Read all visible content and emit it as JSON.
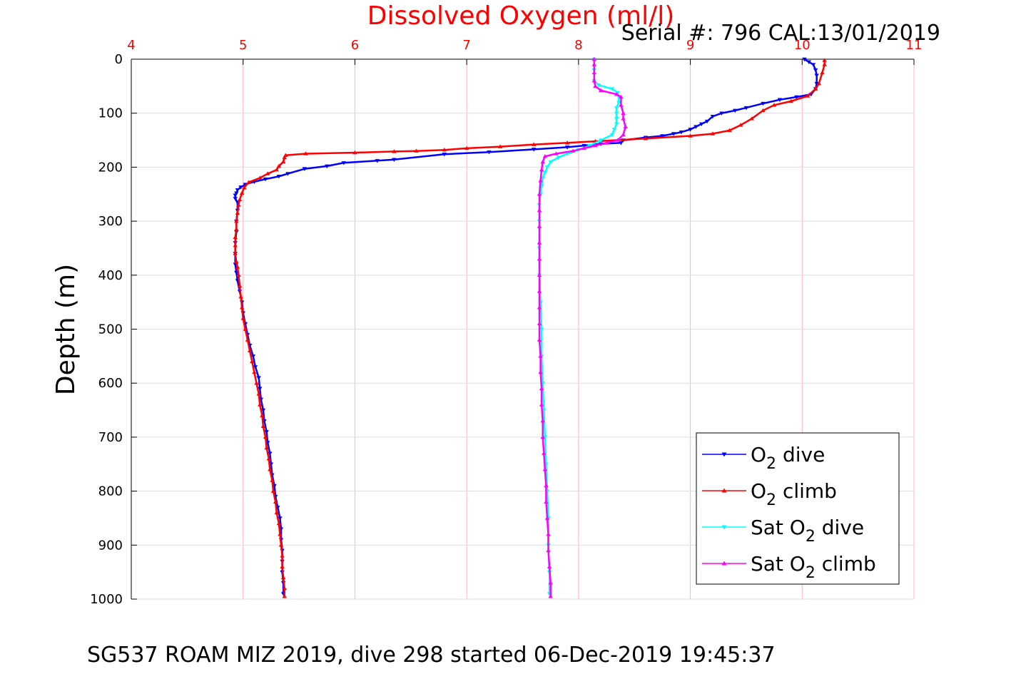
{
  "chart_data": {
    "type": "scatter",
    "title": "Dissolved Oxygen (ml/l)",
    "subtitle": "Serial #: 796  CAL:13/01/2019",
    "xlabel": "Dissolved Oxygen (ml/l)",
    "ylabel": "Depth (m)",
    "xlim": [
      4,
      11
    ],
    "ylim": [
      0,
      1000
    ],
    "y_reversed": true,
    "x_axis_position": "top",
    "x_ticks": [
      "4",
      "5",
      "6",
      "7",
      "8",
      "9",
      "10",
      "11"
    ],
    "y_ticks": [
      "0",
      "100",
      "200",
      "300",
      "400",
      "500",
      "600",
      "700",
      "800",
      "900",
      "1000"
    ],
    "grid": true,
    "legend_position": "bottom-right",
    "footer": "SG537 ROAM MIZ 2019, dive 298 started 06-Dec-2019 19:45:37",
    "colors": {
      "title": "#ff0000",
      "x_ticks": "#ff0000",
      "grid": "#ffb3c6",
      "o2_dive": "#0000ff",
      "o2_climb": "#ff0000",
      "sat_dive": "#00ffff",
      "sat_climb": "#ff00ff"
    },
    "series": [
      {
        "name": "O2 dive",
        "legend": {
          "pre": "O",
          "sub": "2",
          "post": " dive"
        },
        "marker": "triangle-down",
        "color": "#0000ff",
        "points": [
          [
            10.02,
            0
          ],
          [
            10.06,
            5
          ],
          [
            10.1,
            10
          ],
          [
            10.12,
            20
          ],
          [
            10.13,
            30
          ],
          [
            10.13,
            45
          ],
          [
            10.12,
            55
          ],
          [
            10.08,
            65
          ],
          [
            9.95,
            70
          ],
          [
            9.8,
            75
          ],
          [
            9.65,
            82
          ],
          [
            9.5,
            90
          ],
          [
            9.4,
            95
          ],
          [
            9.28,
            100
          ],
          [
            9.2,
            106
          ],
          [
            9.15,
            115
          ],
          [
            9.1,
            120
          ],
          [
            9.05,
            125
          ],
          [
            9.0,
            130
          ],
          [
            8.92,
            135
          ],
          [
            8.85,
            138
          ],
          [
            8.75,
            142
          ],
          [
            8.6,
            145
          ],
          [
            8.4,
            150
          ],
          [
            8.38,
            155
          ],
          [
            8.2,
            157
          ],
          [
            8.05,
            160
          ],
          [
            7.9,
            163
          ],
          [
            7.6,
            167
          ],
          [
            7.2,
            172
          ],
          [
            6.8,
            176
          ],
          [
            6.35,
            186
          ],
          [
            6.2,
            188
          ],
          [
            5.9,
            192
          ],
          [
            5.75,
            198
          ],
          [
            5.55,
            203
          ],
          [
            5.4,
            212
          ],
          [
            5.32,
            217
          ],
          [
            5.2,
            222
          ],
          [
            5.1,
            227
          ],
          [
            5.02,
            232
          ],
          [
            4.98,
            237
          ],
          [
            4.95,
            242
          ],
          [
            4.94,
            248
          ],
          [
            4.93,
            252
          ],
          [
            4.93,
            258
          ],
          [
            4.95,
            265
          ],
          [
            4.95,
            280
          ],
          [
            4.94,
            300
          ],
          [
            4.94,
            320
          ],
          [
            4.93,
            340
          ],
          [
            4.93,
            360
          ],
          [
            4.93,
            380
          ],
          [
            4.94,
            395
          ],
          [
            4.95,
            410
          ],
          [
            4.97,
            430
          ],
          [
            4.99,
            450
          ],
          [
            5.0,
            470
          ],
          [
            5.02,
            490
          ],
          [
            5.04,
            510
          ],
          [
            5.06,
            530
          ],
          [
            5.09,
            550
          ],
          [
            5.11,
            570
          ],
          [
            5.14,
            590
          ],
          [
            5.15,
            610
          ],
          [
            5.16,
            630
          ],
          [
            5.18,
            650
          ],
          [
            5.19,
            670
          ],
          [
            5.21,
            690
          ],
          [
            5.22,
            710
          ],
          [
            5.24,
            730
          ],
          [
            5.25,
            750
          ],
          [
            5.26,
            770
          ],
          [
            5.28,
            790
          ],
          [
            5.29,
            810
          ],
          [
            5.31,
            830
          ],
          [
            5.33,
            850
          ],
          [
            5.34,
            870
          ],
          [
            5.34,
            890
          ],
          [
            5.35,
            910
          ],
          [
            5.35,
            930
          ],
          [
            5.35,
            950
          ],
          [
            5.36,
            970
          ],
          [
            5.36,
            990
          ]
        ]
      },
      {
        "name": "O2 climb",
        "legend": {
          "pre": "O",
          "sub": "2",
          "post": " climb"
        },
        "marker": "triangle-up",
        "color": "#ff0000",
        "points": [
          [
            5.37,
            995
          ],
          [
            5.37,
            980
          ],
          [
            5.36,
            960
          ],
          [
            5.35,
            940
          ],
          [
            5.35,
            920
          ],
          [
            5.34,
            900
          ],
          [
            5.33,
            880
          ],
          [
            5.32,
            860
          ],
          [
            5.3,
            840
          ],
          [
            5.29,
            820
          ],
          [
            5.27,
            800
          ],
          [
            5.26,
            780
          ],
          [
            5.24,
            760
          ],
          [
            5.23,
            740
          ],
          [
            5.21,
            720
          ],
          [
            5.2,
            700
          ],
          [
            5.18,
            680
          ],
          [
            5.17,
            660
          ],
          [
            5.15,
            640
          ],
          [
            5.14,
            620
          ],
          [
            5.12,
            600
          ],
          [
            5.1,
            580
          ],
          [
            5.08,
            560
          ],
          [
            5.06,
            540
          ],
          [
            5.04,
            520
          ],
          [
            5.02,
            500
          ],
          [
            5.0,
            480
          ],
          [
            4.99,
            460
          ],
          [
            4.98,
            440
          ],
          [
            4.97,
            420
          ],
          [
            4.96,
            400
          ],
          [
            4.95,
            385
          ],
          [
            4.94,
            375
          ],
          [
            4.93,
            360
          ],
          [
            4.93,
            345
          ],
          [
            4.93,
            330
          ],
          [
            4.94,
            315
          ],
          [
            4.94,
            300
          ],
          [
            4.95,
            285
          ],
          [
            4.96,
            270
          ],
          [
            4.97,
            260
          ],
          [
            4.99,
            248
          ],
          [
            5.01,
            238
          ],
          [
            5.05,
            228
          ],
          [
            5.15,
            220
          ],
          [
            5.22,
            212
          ],
          [
            5.3,
            205
          ],
          [
            5.32,
            198
          ],
          [
            5.36,
            190
          ],
          [
            5.37,
            182
          ],
          [
            5.38,
            178
          ],
          [
            5.56,
            175
          ],
          [
            6.0,
            173
          ],
          [
            6.35,
            171
          ],
          [
            6.55,
            170
          ],
          [
            6.8,
            168
          ],
          [
            7.0,
            165
          ],
          [
            7.3,
            162
          ],
          [
            7.6,
            158
          ],
          [
            7.9,
            155
          ],
          [
            8.15,
            152
          ],
          [
            8.6,
            147
          ],
          [
            9.0,
            142
          ],
          [
            9.2,
            138
          ],
          [
            9.35,
            132
          ],
          [
            9.45,
            122
          ],
          [
            9.55,
            110
          ],
          [
            9.65,
            95
          ],
          [
            9.75,
            85
          ],
          [
            9.9,
            78
          ],
          [
            10.05,
            68
          ],
          [
            10.12,
            55
          ],
          [
            10.15,
            45
          ],
          [
            10.18,
            25
          ],
          [
            10.2,
            10
          ],
          [
            10.2,
            2
          ]
        ]
      },
      {
        "name": "Sat O2 dive",
        "legend": {
          "pre": "Sat O",
          "sub": "2",
          "post": " dive"
        },
        "marker": "triangle-down",
        "color": "#00ffff",
        "points": [
          [
            8.14,
            0
          ],
          [
            8.14,
            20
          ],
          [
            8.14,
            40
          ],
          [
            8.18,
            48
          ],
          [
            8.3,
            55
          ],
          [
            8.35,
            62
          ],
          [
            8.36,
            70
          ],
          [
            8.36,
            80
          ],
          [
            8.34,
            90
          ],
          [
            8.34,
            100
          ],
          [
            8.34,
            110
          ],
          [
            8.34,
            120
          ],
          [
            8.32,
            130
          ],
          [
            8.3,
            140
          ],
          [
            8.2,
            150
          ],
          [
            8.1,
            160
          ],
          [
            8.0,
            168
          ],
          [
            7.9,
            175
          ],
          [
            7.82,
            182
          ],
          [
            7.75,
            190
          ],
          [
            7.72,
            200
          ],
          [
            7.7,
            210
          ],
          [
            7.68,
            220
          ],
          [
            7.67,
            235
          ],
          [
            7.66,
            250
          ],
          [
            7.65,
            270
          ],
          [
            7.65,
            300
          ],
          [
            7.65,
            350
          ],
          [
            7.65,
            400
          ],
          [
            7.66,
            450
          ],
          [
            7.67,
            500
          ],
          [
            7.67,
            550
          ],
          [
            7.68,
            600
          ],
          [
            7.69,
            650
          ],
          [
            7.7,
            700
          ],
          [
            7.71,
            750
          ],
          [
            7.72,
            800
          ],
          [
            7.73,
            850
          ],
          [
            7.73,
            900
          ],
          [
            7.74,
            950
          ],
          [
            7.74,
            990
          ]
        ]
      },
      {
        "name": "Sat O2 climb",
        "legend": {
          "pre": "Sat O",
          "sub": "2",
          "post": " climb"
        },
        "marker": "triangle-up",
        "color": "#ff00ff",
        "points": [
          [
            7.75,
            995
          ],
          [
            7.75,
            970
          ],
          [
            7.74,
            940
          ],
          [
            7.73,
            910
          ],
          [
            7.73,
            880
          ],
          [
            7.72,
            850
          ],
          [
            7.71,
            820
          ],
          [
            7.71,
            790
          ],
          [
            7.7,
            760
          ],
          [
            7.69,
            730
          ],
          [
            7.68,
            700
          ],
          [
            7.68,
            670
          ],
          [
            7.67,
            640
          ],
          [
            7.67,
            610
          ],
          [
            7.66,
            580
          ],
          [
            7.66,
            550
          ],
          [
            7.65,
            520
          ],
          [
            7.65,
            490
          ],
          [
            7.65,
            460
          ],
          [
            7.65,
            430
          ],
          [
            7.65,
            400
          ],
          [
            7.65,
            370
          ],
          [
            7.65,
            340
          ],
          [
            7.65,
            310
          ],
          [
            7.65,
            280
          ],
          [
            7.65,
            250
          ],
          [
            7.66,
            225
          ],
          [
            7.67,
            205
          ],
          [
            7.68,
            190
          ],
          [
            7.7,
            180
          ],
          [
            7.8,
            175
          ],
          [
            7.95,
            170
          ],
          [
            8.05,
            165
          ],
          [
            8.15,
            160
          ],
          [
            8.25,
            155
          ],
          [
            8.35,
            150
          ],
          [
            8.4,
            140
          ],
          [
            8.42,
            125
          ],
          [
            8.4,
            110
          ],
          [
            8.4,
            100
          ],
          [
            8.38,
            85
          ],
          [
            8.38,
            70
          ],
          [
            8.34,
            65
          ],
          [
            8.2,
            58
          ],
          [
            8.15,
            50
          ],
          [
            8.14,
            40
          ],
          [
            8.14,
            25
          ],
          [
            8.14,
            10
          ],
          [
            8.14,
            0
          ]
        ]
      }
    ]
  }
}
